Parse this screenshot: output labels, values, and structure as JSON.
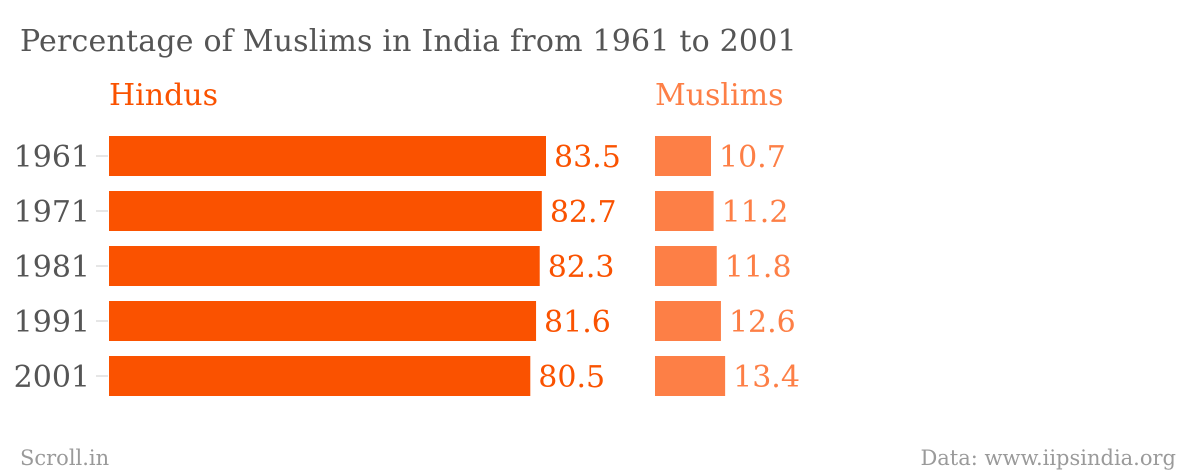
{
  "title": "Percentage of Muslims in India from 1961 to 2001",
  "footer": {
    "source_brand": "Scroll.in",
    "data_credit": "Data: www.iipsindia.org"
  },
  "colors": {
    "hindus": "#fa5200",
    "muslims": "#fd7f46",
    "axis_text": "#555555",
    "footer_text": "#9a9a9a"
  },
  "chart_data": {
    "type": "bar",
    "orientation": "horizontal",
    "categories": [
      "1961",
      "1971",
      "1981",
      "1991",
      "2001"
    ],
    "series": [
      {
        "name": "Hindus",
        "values": [
          83.5,
          82.7,
          82.3,
          81.6,
          80.5
        ]
      },
      {
        "name": "Muslims",
        "values": [
          10.7,
          11.2,
          11.8,
          12.6,
          13.4
        ]
      }
    ],
    "grid": false,
    "legend": "panel headers above each bar group",
    "data_labels": true
  }
}
